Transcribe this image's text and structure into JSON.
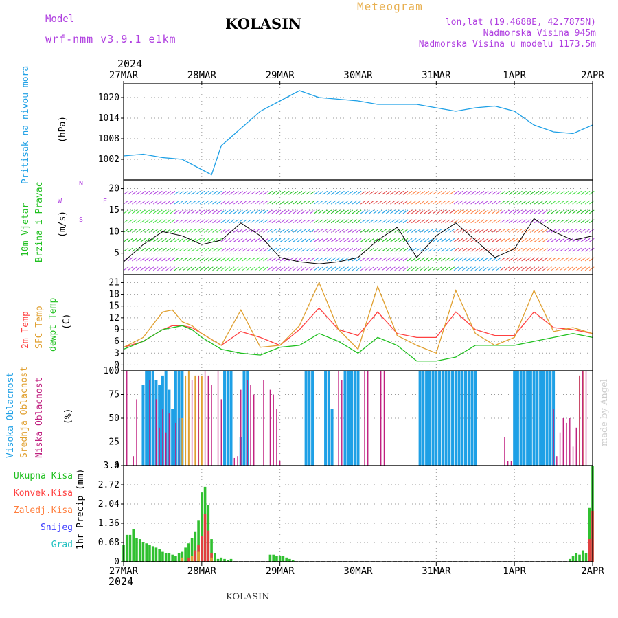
{
  "header": {
    "model_label": "Model",
    "model_name": "wrf-nmm_v3.9.1 e1km",
    "station": "KOLASIN",
    "meteogram_label": "Meteogram",
    "lonlat": "lon,lat (19.4688E, 42.7875N)",
    "elevation": "Nadmorska Visina 945m",
    "model_elevation": "Nadmorska Visina u modelu 1173.5m",
    "year_top": "2024",
    "year_bottom": "2024",
    "footer_station": "KOLASIN",
    "watermark": "made by Angel"
  },
  "colors": {
    "pressure": "#1ea0e6",
    "temp2m": "#ff4040",
    "sfc": "#e0a030",
    "dewpt": "#20c020",
    "high_cloud": "#1ea0e6",
    "mid_cloud": "#e0a030",
    "low_cloud": "#c02080",
    "precip": "#30c030",
    "magenta": "#b040e0"
  },
  "dates": [
    "27MAR",
    "28MAR",
    "29MAR",
    "30MAR",
    "31MAR",
    "1APR",
    "2APR"
  ],
  "labels": {
    "pressure": {
      "a": "Pritisak na nivou mora",
      "unit": "(hPa)"
    },
    "wind": {
      "a": "10m Vjetar",
      "b": "Brzina i Pravac",
      "unit": "(m/s)",
      "compass_n": "N",
      "compass_s": "S",
      "compass_e": "E",
      "compass_w": "W"
    },
    "temp": {
      "a": "2m Temp",
      "b": "SFC Temp",
      "c": "dewpt Temp",
      "unit": "(C)"
    },
    "cloud": {
      "a": "Visoka Oblacnost",
      "b": "Srednja Oblacnost",
      "c": "Niska Oblacnost",
      "unit": "(%)"
    },
    "precip": {
      "a": "Ukupna Kisa",
      "b": "Konvek.Kisa",
      "c": "Zaledj.Kisa",
      "d": "Snijeg",
      "e": "Grad",
      "unit": "1hr Precip (mm)"
    }
  },
  "chart_data": [
    {
      "type": "line",
      "name": "pressure",
      "ylim": [
        996,
        1024
      ],
      "yticks": [
        "1002",
        "1008",
        "1014",
        "1020"
      ],
      "x_hours": [
        0,
        6,
        12,
        18,
        24,
        27,
        30,
        36,
        42,
        48,
        54,
        60,
        66,
        72,
        78,
        84,
        90,
        96,
        102,
        108,
        114,
        120,
        126,
        132,
        138,
        144
      ],
      "values": [
        1003,
        1003.5,
        1002.5,
        1002,
        999,
        997.5,
        1006,
        1011,
        1016,
        1019,
        1022,
        1020,
        1019.5,
        1019,
        1018,
        1018,
        1018,
        1017,
        1016,
        1017,
        1017.5,
        1016,
        1012,
        1010,
        1009.5,
        1012
      ],
      "grid": true
    },
    {
      "type": "line",
      "name": "wind",
      "ylim": [
        0,
        22
      ],
      "yticks": [
        "5",
        "10",
        "15",
        "20"
      ],
      "x_hours": [
        0,
        6,
        12,
        18,
        24,
        30,
        36,
        42,
        48,
        54,
        60,
        66,
        72,
        78,
        84,
        90,
        96,
        102,
        108,
        114,
        120,
        126,
        132,
        138,
        144
      ],
      "values": [
        3,
        7,
        10,
        9,
        7,
        8,
        12,
        9,
        4,
        3,
        2.5,
        3,
        4,
        8,
        11,
        4,
        9,
        12,
        8,
        4,
        6,
        13,
        10,
        8,
        9
      ],
      "grid": true
    },
    {
      "type": "line",
      "name": "temperature",
      "ylim": [
        -1.5,
        23
      ],
      "yticks": [
        "0",
        "3",
        "6",
        "9",
        "12",
        "15",
        "18",
        "21"
      ],
      "x_hours": [
        0,
        6,
        12,
        15,
        18,
        21,
        24,
        30,
        36,
        42,
        48,
        54,
        60,
        66,
        72,
        78,
        84,
        90,
        96,
        102,
        108,
        114,
        120,
        126,
        132,
        138,
        144
      ],
      "series": [
        {
          "name": "2m Temp",
          "values": [
            4.5,
            6,
            9,
            10,
            10,
            9.5,
            8,
            5,
            8.5,
            7,
            5,
            9,
            14.5,
            9,
            7.5,
            13.5,
            8,
            7,
            7,
            13.5,
            9,
            7.5,
            7.5,
            13.5,
            9.5,
            9,
            8
          ]
        },
        {
          "name": "SFC Temp",
          "values": [
            4.5,
            7,
            13.5,
            14,
            11,
            10,
            8,
            5,
            14,
            4.5,
            5,
            10,
            21,
            9,
            4,
            20,
            7.5,
            5,
            3,
            19,
            8,
            5,
            7,
            19,
            8.5,
            9.5,
            8
          ]
        },
        {
          "name": "dewpt Temp",
          "values": [
            4,
            6,
            9,
            9.5,
            10,
            9,
            7,
            4,
            3,
            2.5,
            4.5,
            5,
            8,
            6,
            3,
            7,
            5,
            1,
            1,
            2,
            5,
            5,
            5,
            6,
            7,
            8,
            7
          ]
        }
      ],
      "grid": true
    },
    {
      "type": "bar",
      "name": "cloud",
      "ylim": [
        0,
        100
      ],
      "yticks": [
        "0",
        "25",
        "50",
        "75",
        "100"
      ],
      "series": [
        {
          "name": "Visoka Oblacnost",
          "hours": [
            6,
            7,
            8,
            9,
            10,
            11,
            12,
            13,
            14,
            15,
            16,
            17,
            18,
            31,
            32,
            33,
            36,
            37,
            38,
            56,
            57,
            58,
            62,
            63,
            64,
            68,
            69,
            70,
            71,
            72,
            91,
            92,
            93,
            94,
            95,
            96,
            97,
            98,
            99,
            100,
            101,
            102,
            103,
            104,
            105,
            106,
            107,
            108,
            120,
            121,
            122,
            123,
            124,
            125,
            126,
            127,
            128,
            129,
            130,
            131,
            132
          ],
          "values": [
            85,
            100,
            100,
            100,
            90,
            85,
            95,
            100,
            80,
            60,
            100,
            100,
            100,
            100,
            100,
            100,
            30,
            100,
            100,
            100,
            100,
            100,
            100,
            100,
            60,
            100,
            100,
            100,
            100,
            100,
            100,
            100,
            100,
            100,
            100,
            100,
            100,
            100,
            100,
            100,
            100,
            100,
            100,
            100,
            100,
            100,
            100,
            100,
            100,
            100,
            100,
            100,
            100,
            100,
            100,
            100,
            100,
            100,
            100,
            100,
            100
          ]
        },
        {
          "name": "Srednja Oblacnost",
          "hours": [
            18,
            19,
            20,
            22,
            23,
            24,
            140,
            141
          ],
          "values": [
            50,
            95,
            100,
            95,
            95,
            95,
            95,
            100
          ]
        },
        {
          "name": "Niska Oblacnost",
          "hours": [
            1,
            3,
            4,
            8,
            10,
            11,
            12,
            13,
            14,
            16,
            17,
            21,
            23,
            25,
            26,
            27,
            29,
            30,
            34,
            35,
            36,
            38,
            39,
            40,
            43,
            45,
            46,
            47,
            48,
            66,
            67,
            74,
            75,
            79,
            80,
            117,
            118,
            119,
            132,
            133,
            134,
            135,
            136,
            137,
            138,
            139,
            140,
            141,
            142
          ],
          "values": [
            100,
            10,
            70,
            90,
            70,
            40,
            60,
            35,
            55,
            45,
            50,
            90,
            95,
            100,
            95,
            85,
            100,
            70,
            8,
            10,
            80,
            90,
            85,
            75,
            90,
            80,
            75,
            60,
            5,
            100,
            90,
            100,
            100,
            100,
            100,
            30,
            5,
            5,
            60,
            10,
            35,
            50,
            45,
            50,
            20,
            40,
            95,
            100,
            100
          ]
        }
      ],
      "grid": true
    },
    {
      "type": "bar",
      "name": "precipitation",
      "ylim": [
        0,
        3.4
      ],
      "yticks": [
        "0",
        "0.68",
        "1.36",
        "2.04",
        "2.72",
        "3.4"
      ],
      "series": [
        {
          "name": "Ukupna Kisa",
          "hours": [
            0,
            1,
            2,
            3,
            4,
            5,
            6,
            7,
            8,
            9,
            10,
            11,
            12,
            13,
            14,
            15,
            16,
            17,
            18,
            19,
            20,
            21,
            22,
            23,
            24,
            25,
            26,
            27,
            28,
            29,
            30,
            31,
            32,
            33,
            45,
            46,
            47,
            48,
            49,
            50,
            51,
            52,
            137,
            138,
            139,
            140,
            141,
            142,
            143,
            144
          ],
          "values": [
            0.6,
            0.95,
            0.95,
            1.15,
            0.85,
            0.8,
            0.7,
            0.65,
            0.6,
            0.55,
            0.5,
            0.45,
            0.35,
            0.3,
            0.3,
            0.25,
            0.2,
            0.3,
            0.35,
            0.5,
            0.65,
            0.85,
            1.05,
            1.45,
            2.45,
            2.65,
            2.0,
            0.8,
            0.3,
            0.1,
            0.15,
            0.1,
            0.05,
            0.1,
            0.25,
            0.25,
            0.2,
            0.2,
            0.2,
            0.15,
            0.1,
            0.05,
            0.1,
            0.2,
            0.3,
            0.25,
            0.4,
            0.3,
            1.9,
            3.4
          ]
        },
        {
          "name": "Konvek.Kisa",
          "hours": [
            20,
            22,
            23,
            24,
            25,
            26,
            27,
            143,
            144
          ],
          "values": [
            0.15,
            0.4,
            0.6,
            0.9,
            1.7,
            1.1,
            0.3,
            0.8,
            1.8
          ]
        },
        {
          "name": "Zaledj.Kisa",
          "hours": [
            18,
            21,
            23,
            27
          ],
          "values": [
            0.15,
            0.2,
            0.35,
            0.15
          ]
        }
      ],
      "grid": true
    }
  ]
}
